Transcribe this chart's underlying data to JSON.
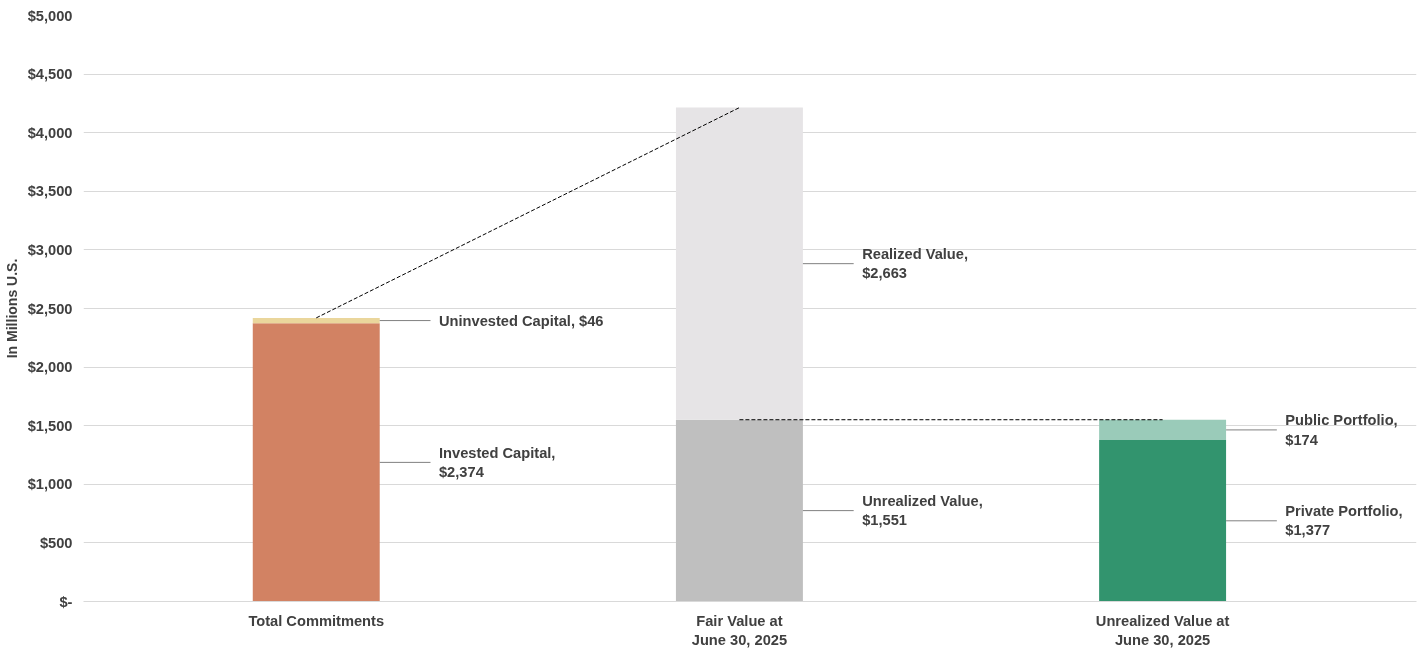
{
  "chart_data": {
    "type": "bar",
    "stacked": true,
    "ylabel": "In Millions U.S.",
    "categories": [
      "Total Commitments",
      "Fair Value at\nJune 30, 2025",
      "Unrealized Value at\nJune 30, 2025"
    ],
    "series": [
      {
        "type": "line",
        "line_style": "dashed",
        "color": "#000000",
        "x": [
          "Total Commitments",
          "Fair Value at\nJune 30, 2025"
        ],
        "values": [
          2420,
          4214
        ]
      },
      {
        "type": "line",
        "line_style": "dashed",
        "color": "#000000",
        "x": [
          "Fair Value at\nJune 30, 2025",
          "Unrealized Value at\nJune 30, 2025"
        ],
        "values": [
          1551,
          1551
        ]
      },
      {
        "color": "#d28263",
        "values": [
          2374,
          null,
          null
        ],
        "value_labels": [
          "Invested Capital,\n$2,374",
          null,
          null
        ]
      },
      {
        "color": "#ead69c",
        "values": [
          46,
          null,
          null
        ],
        "value_labels": [
          "Uninvested Capital,  $46",
          null,
          null
        ]
      },
      {
        "color": "#bfbfbf",
        "values": [
          null,
          1551,
          null
        ],
        "value_labels": [
          null,
          "Unrealized Value,\n$1,551",
          null
        ]
      },
      {
        "color": "#e6e4e6",
        "values": [
          null,
          2663,
          null
        ],
        "value_labels": [
          null,
          "Realized Value,\n$2,663",
          null
        ]
      },
      {
        "color": "#32946e",
        "values": [
          null,
          null,
          1377
        ],
        "value_labels": [
          null,
          null,
          "Private Portfolio,\n$1,377"
        ]
      },
      {
        "color": "#9acbb9",
        "values": [
          null,
          null,
          174
        ],
        "value_labels": [
          null,
          null,
          "Public Portfolio,\n$174"
        ]
      }
    ],
    "ylim": [
      0,
      5000
    ],
    "yticks": [
      {
        "value": 0,
        "label": "$-"
      },
      {
        "value": 500,
        "label": "$500"
      },
      {
        "value": 1000,
        "label": "$1,000"
      },
      {
        "value": 1500,
        "label": "$1,500"
      },
      {
        "value": 2000,
        "label": "$2,000"
      },
      {
        "value": 2500,
        "label": "$2,500"
      },
      {
        "value": 3000,
        "label": "$3,000"
      },
      {
        "value": 3500,
        "label": "$3,500"
      },
      {
        "value": 4000,
        "label": "$4,000"
      },
      {
        "value": 4500,
        "label": "$4,500"
      },
      {
        "value": 5000,
        "label": "$5,000"
      }
    ],
    "grid": "y"
  }
}
